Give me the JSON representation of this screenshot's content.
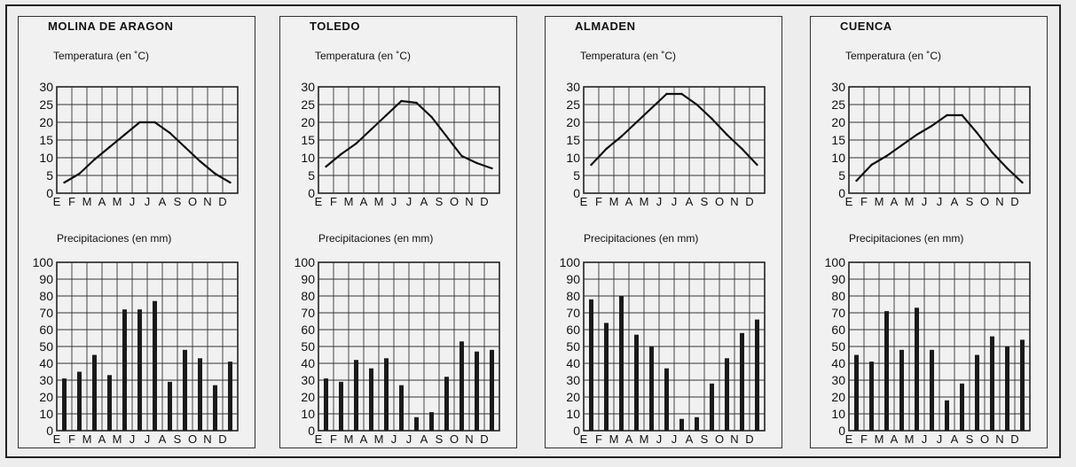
{
  "chart_data": [
    {
      "type": "line+bar",
      "title": "MOLINA DE ARAGON",
      "temperature": {
        "label": "Temperatura (en ˚C)",
        "type": "line",
        "categories": [
          "E",
          "F",
          "M",
          "A",
          "M",
          "J",
          "J",
          "A",
          "S",
          "O",
          "N",
          "D"
        ],
        "values": [
          3,
          5.5,
          9.5,
          13,
          16.5,
          20,
          20,
          17,
          13,
          9,
          5.5,
          3
        ],
        "ylim": [
          0,
          30
        ],
        "yticks": [
          "0",
          "5",
          "10",
          "15",
          "20",
          "25",
          "30"
        ]
      },
      "precipitation": {
        "label": "Precipitaciones (en mm)",
        "type": "bar",
        "categories": [
          "E",
          "F",
          "M",
          "A",
          "M",
          "J",
          "J",
          "A",
          "S",
          "O",
          "N",
          "D"
        ],
        "values": [
          31,
          35,
          45,
          33,
          72,
          72,
          77,
          29,
          48,
          43,
          27,
          41
        ],
        "ylim": [
          0,
          100
        ],
        "yticks": [
          "0",
          "10",
          "20",
          "30",
          "40",
          "50",
          "60",
          "70",
          "80",
          "90",
          "100"
        ]
      }
    },
    {
      "type": "line+bar",
      "title": "TOLEDO",
      "temperature": {
        "label": "Temperatura (en ˚C)",
        "type": "line",
        "categories": [
          "E",
          "F",
          "M",
          "A",
          "M",
          "J",
          "J",
          "A",
          "S",
          "O",
          "N",
          "D"
        ],
        "values": [
          7.5,
          11,
          14,
          18,
          22,
          26,
          25.5,
          21.5,
          16,
          10.5,
          8.5,
          7
        ],
        "ylim": [
          0,
          30
        ],
        "yticks": [
          "0",
          "5",
          "10",
          "15",
          "20",
          "25",
          "30"
        ]
      },
      "precipitation": {
        "label": "Precipitaciones (en mm)",
        "type": "bar",
        "categories": [
          "E",
          "F",
          "M",
          "A",
          "M",
          "J",
          "J",
          "A",
          "S",
          "O",
          "N",
          "D"
        ],
        "values": [
          31,
          29,
          42,
          37,
          43,
          27,
          8,
          11,
          32,
          53,
          47,
          48
        ],
        "ylim": [
          0,
          100
        ],
        "yticks": [
          "0",
          "10",
          "20",
          "30",
          "40",
          "50",
          "60",
          "70",
          "80",
          "90",
          "100"
        ]
      }
    },
    {
      "type": "line+bar",
      "title": "ALMADEN",
      "temperature": {
        "label": "Temperatura (en ˚C)",
        "type": "line",
        "categories": [
          "E",
          "F",
          "M",
          "A",
          "M",
          "J",
          "J",
          "A",
          "S",
          "O",
          "N",
          "D"
        ],
        "values": [
          8,
          12.5,
          16,
          20,
          24,
          28,
          28,
          25,
          21,
          16.5,
          12.5,
          8
        ],
        "ylim": [
          0,
          30
        ],
        "yticks": [
          "0",
          "5",
          "10",
          "15",
          "20",
          "25",
          "30"
        ]
      },
      "precipitation": {
        "label": "Precipitaciones (en mm)",
        "type": "bar",
        "categories": [
          "E",
          "F",
          "M",
          "A",
          "M",
          "J",
          "J",
          "A",
          "S",
          "O",
          "N",
          "D"
        ],
        "values": [
          78,
          64,
          80,
          57,
          50,
          37,
          7,
          8,
          28,
          43,
          58,
          66
        ],
        "ylim": [
          0,
          100
        ],
        "yticks": [
          "0",
          "10",
          "20",
          "30",
          "40",
          "50",
          "60",
          "70",
          "80",
          "90",
          "100"
        ]
      }
    },
    {
      "type": "line+bar",
      "title": "CUENCA",
      "temperature": {
        "label": "Temperatura (en ˚C)",
        "type": "line",
        "categories": [
          "E",
          "F",
          "M",
          "A",
          "M",
          "J",
          "J",
          "A",
          "S",
          "O",
          "N",
          "D"
        ],
        "values": [
          3.5,
          8,
          10.5,
          13.5,
          16.5,
          19,
          22,
          22,
          17,
          11.5,
          7,
          3
        ],
        "ylim": [
          0,
          30
        ],
        "yticks": [
          "0",
          "5",
          "10",
          "15",
          "20",
          "25",
          "30"
        ]
      },
      "precipitation": {
        "label": "Precipitaciones (en mm)",
        "type": "bar",
        "categories": [
          "E",
          "F",
          "M",
          "A",
          "M",
          "J",
          "J",
          "A",
          "S",
          "O",
          "N",
          "D"
        ],
        "values": [
          45,
          41,
          71,
          48,
          73,
          48,
          18,
          28,
          45,
          56,
          50,
          54
        ],
        "ylim": [
          0,
          100
        ],
        "yticks": [
          "0",
          "10",
          "20",
          "30",
          "40",
          "50",
          "60",
          "70",
          "80",
          "90",
          "100"
        ]
      }
    }
  ]
}
